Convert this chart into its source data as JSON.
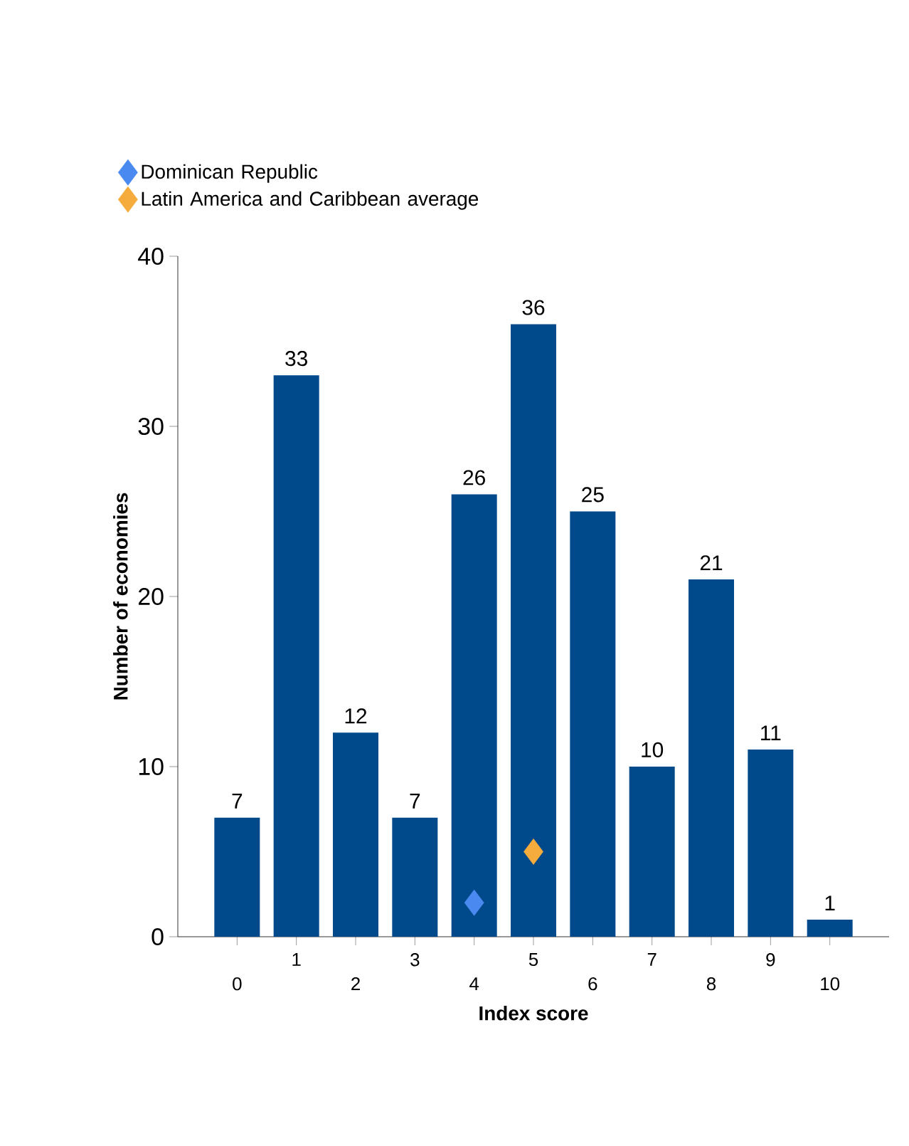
{
  "chart_data": {
    "type": "bar",
    "xlabel": "Index score",
    "ylabel": "Number of economies",
    "categories": [
      "0",
      "1",
      "2",
      "3",
      "4",
      "5",
      "6",
      "7",
      "8",
      "9",
      "10"
    ],
    "series": [
      {
        "color": "#004a8c",
        "values": [
          7,
          33,
          12,
          7,
          26,
          36,
          25,
          10,
          21,
          11,
          1
        ],
        "value_labels": [
          "7",
          "33",
          "12",
          "7",
          "26",
          "36",
          "25",
          "10",
          "21",
          "11",
          "1"
        ]
      },
      {
        "name": "Dominican Republic",
        "type": "scatter",
        "marker": "diamond",
        "color": "#4a8af0",
        "x": [
          "4"
        ],
        "values": [
          2
        ]
      },
      {
        "name": "Latin America and Caribbean average",
        "type": "scatter",
        "marker": "diamond",
        "color": "#f5ac3c",
        "x": [
          "5"
        ],
        "values": [
          5
        ]
      }
    ],
    "ylim": [
      0,
      40
    ],
    "yticks": [
      0,
      10,
      20,
      30,
      40
    ],
    "legend": "top left"
  }
}
